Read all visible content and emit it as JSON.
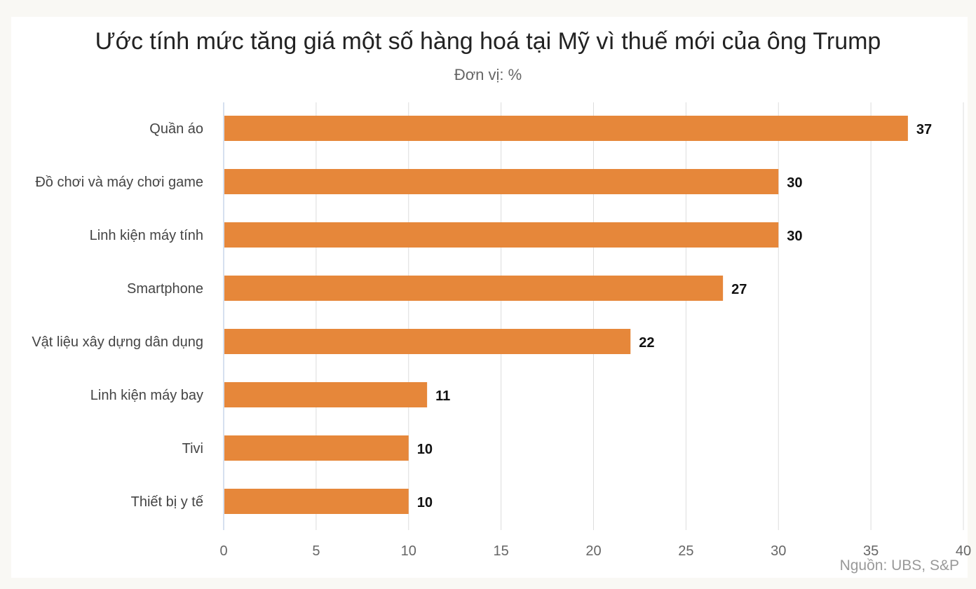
{
  "chart_data": {
    "type": "bar",
    "orientation": "horizontal",
    "title": "Ước tính mức tăng giá một số hàng hoá tại Mỹ vì thuế mới của ông Trump",
    "subtitle": "Đơn vị: %",
    "source": "Nguồn: UBS, S&P",
    "categories": [
      "Quần áo",
      "Đồ chơi và máy chơi game",
      "Linh kiện máy tính",
      "Smartphone",
      "Vật liệu xây dựng dân dụng",
      "Linh kiện máy bay",
      "Tivi",
      "Thiết bị y tế"
    ],
    "values": [
      37,
      30,
      30,
      27,
      22,
      11,
      10,
      10
    ],
    "xlim": [
      0,
      40
    ],
    "xticks": [
      0,
      5,
      10,
      15,
      20,
      25,
      30,
      35,
      40
    ],
    "grid": true,
    "data_labels": true,
    "legend": "none",
    "colors": {
      "bar": "#e6873a",
      "grid": "#dddddd",
      "axis": "#c8d6ea",
      "background": "#f9f8f4",
      "card": "#ffffff"
    }
  }
}
